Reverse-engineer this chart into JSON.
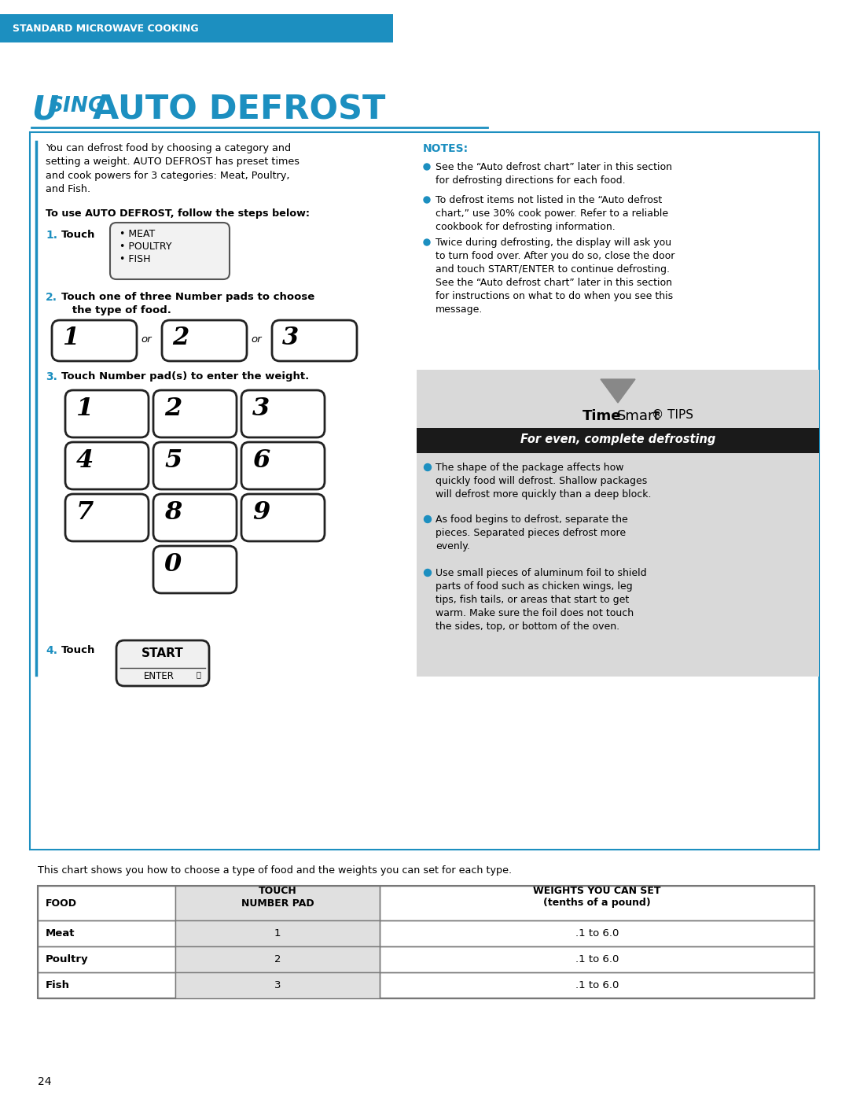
{
  "header_bg": "#1c8fc0",
  "header_text": "STANDARD MICROWAVE COOKING",
  "header_text_color": "#ffffff",
  "title_color": "#1c8fc0",
  "border_color": "#1c8fc0",
  "bg_color": "#ffffff",
  "body_text_color": "#000000",
  "step_number_color": "#1c8fc0",
  "intro_text": "You can defrost food by choosing a category and\nsetting a weight. AUTO DEFROST has preset times\nand cook powers for 3 categories: Meat, Poultry,\nand Fish.",
  "to_use_bold": "To use AUTO DEFROST, follow the steps below:",
  "notes_label": "NOTES:",
  "notes_color": "#1c8fc0",
  "note1": "See the “Auto defrost chart” later in this section\nfor defrosting directions for each food.",
  "note2": "To defrost items not listed in the “Auto defrost\nchart,” use 30% cook power. Refer to a reliable\ncookbook for defrosting information.",
  "note3": "Twice during defrosting, the display will ask you\nto turn food over. After you do so, close the door\nand touch START/ENTER to continue defrosting.\nSee the “Auto defrost chart” later in this section\nfor instructions on what to do when you see this\nmessage.",
  "timesmart_bg": "#d9d9d9",
  "timesmart_subtitle": "For even, complete defrosting",
  "tip1": "The shape of the package affects how\nquickly food will defrost. Shallow packages\nwill defrost more quickly than a deep block.",
  "tip2": "As food begins to defrost, separate the\npieces. Separated pieces defrost more\nevenly.",
  "tip3": "Use small pieces of aluminum foil to shield\nparts of food such as chicken wings, leg\ntips, fish tails, or areas that start to get\nwarm. Make sure the foil does not touch\nthe sides, top, or bottom of the oven.",
  "chart_text": "This chart shows you how to choose a type of food and the weights you can set for each type.",
  "table_headers": [
    "FOOD",
    "TOUCH\nNUMBER PAD",
    "WEIGHTS YOU CAN SET\n(tenths of a pound)"
  ],
  "table_rows": [
    [
      "Meat",
      "1",
      ".1 to 6.0"
    ],
    [
      "Poultry",
      "2",
      ".1 to 6.0"
    ],
    [
      "Fish",
      "3",
      ".1 to 6.0"
    ]
  ],
  "page_number": "24"
}
